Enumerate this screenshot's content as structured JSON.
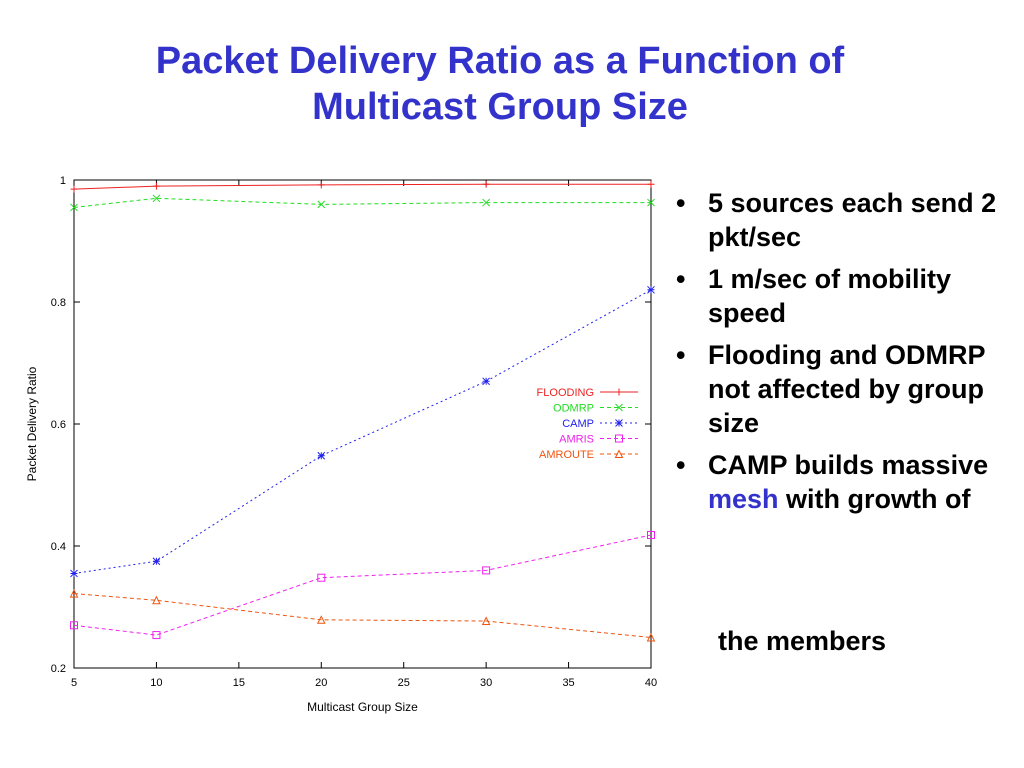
{
  "slide": {
    "title_line1": "Packet Delivery Ratio as a Function of",
    "title_line2": "Multicast Group Size",
    "bullets": {
      "b1": "5 sources each send 2 pkt/sec",
      "b2": "1 m/sec of mobility speed",
      "b3": "Flooding and ODMRP not affected by group size",
      "b4_pre": "CAMP builds massive ",
      "b4_hl": "mesh",
      "b4_post": " with growth of"
    },
    "tail": "the members",
    "bullet_glyph": "•"
  },
  "colors": {
    "title": "#3333cc",
    "highlight": "#3333cc"
  },
  "chart_data": {
    "type": "line",
    "xlabel": "Multicast Group Size",
    "ylabel": "Packet Delivery Ratio",
    "xlim": [
      5,
      40
    ],
    "ylim": [
      0.2,
      1.0
    ],
    "xticks": [
      5,
      10,
      15,
      20,
      25,
      30,
      35,
      40
    ],
    "yticks": [
      0.2,
      0.4,
      0.6,
      0.8,
      1.0
    ],
    "xtick_labels": [
      "5",
      "10",
      "15",
      "20",
      "25",
      "30",
      "35",
      "40"
    ],
    "ytick_labels": [
      "0.2",
      "0.4",
      "0.6",
      "0.8",
      "1"
    ],
    "grid": false,
    "legend_position": "right-middle",
    "series": [
      {
        "name": "FLOODING",
        "color": "#ee2222",
        "marker": "plus",
        "dash": "solid",
        "x": [
          5,
          10,
          20,
          30,
          40
        ],
        "y": [
          0.985,
          0.99,
          0.992,
          0.993,
          0.993
        ]
      },
      {
        "name": "ODMRP",
        "color": "#22dd22",
        "marker": "x",
        "dash": "dashed",
        "x": [
          5,
          10,
          20,
          30,
          40
        ],
        "y": [
          0.955,
          0.97,
          0.96,
          0.963,
          0.963
        ]
      },
      {
        "name": "CAMP",
        "color": "#2222ee",
        "marker": "star",
        "dash": "dotted",
        "x": [
          5,
          10,
          20,
          30,
          40
        ],
        "y": [
          0.355,
          0.375,
          0.548,
          0.67,
          0.82
        ]
      },
      {
        "name": "AMRIS",
        "color": "#ee22ee",
        "marker": "square",
        "dash": "dashed",
        "x": [
          5,
          10,
          20,
          30,
          40
        ],
        "y": [
          0.27,
          0.254,
          0.348,
          0.36,
          0.418
        ]
      },
      {
        "name": "AMROUTE",
        "color": "#ee5511",
        "marker": "triangle",
        "dash": "dashed",
        "x": [
          5,
          10,
          20,
          30,
          40
        ],
        "y": [
          0.322,
          0.311,
          0.279,
          0.277,
          0.25
        ]
      }
    ]
  }
}
